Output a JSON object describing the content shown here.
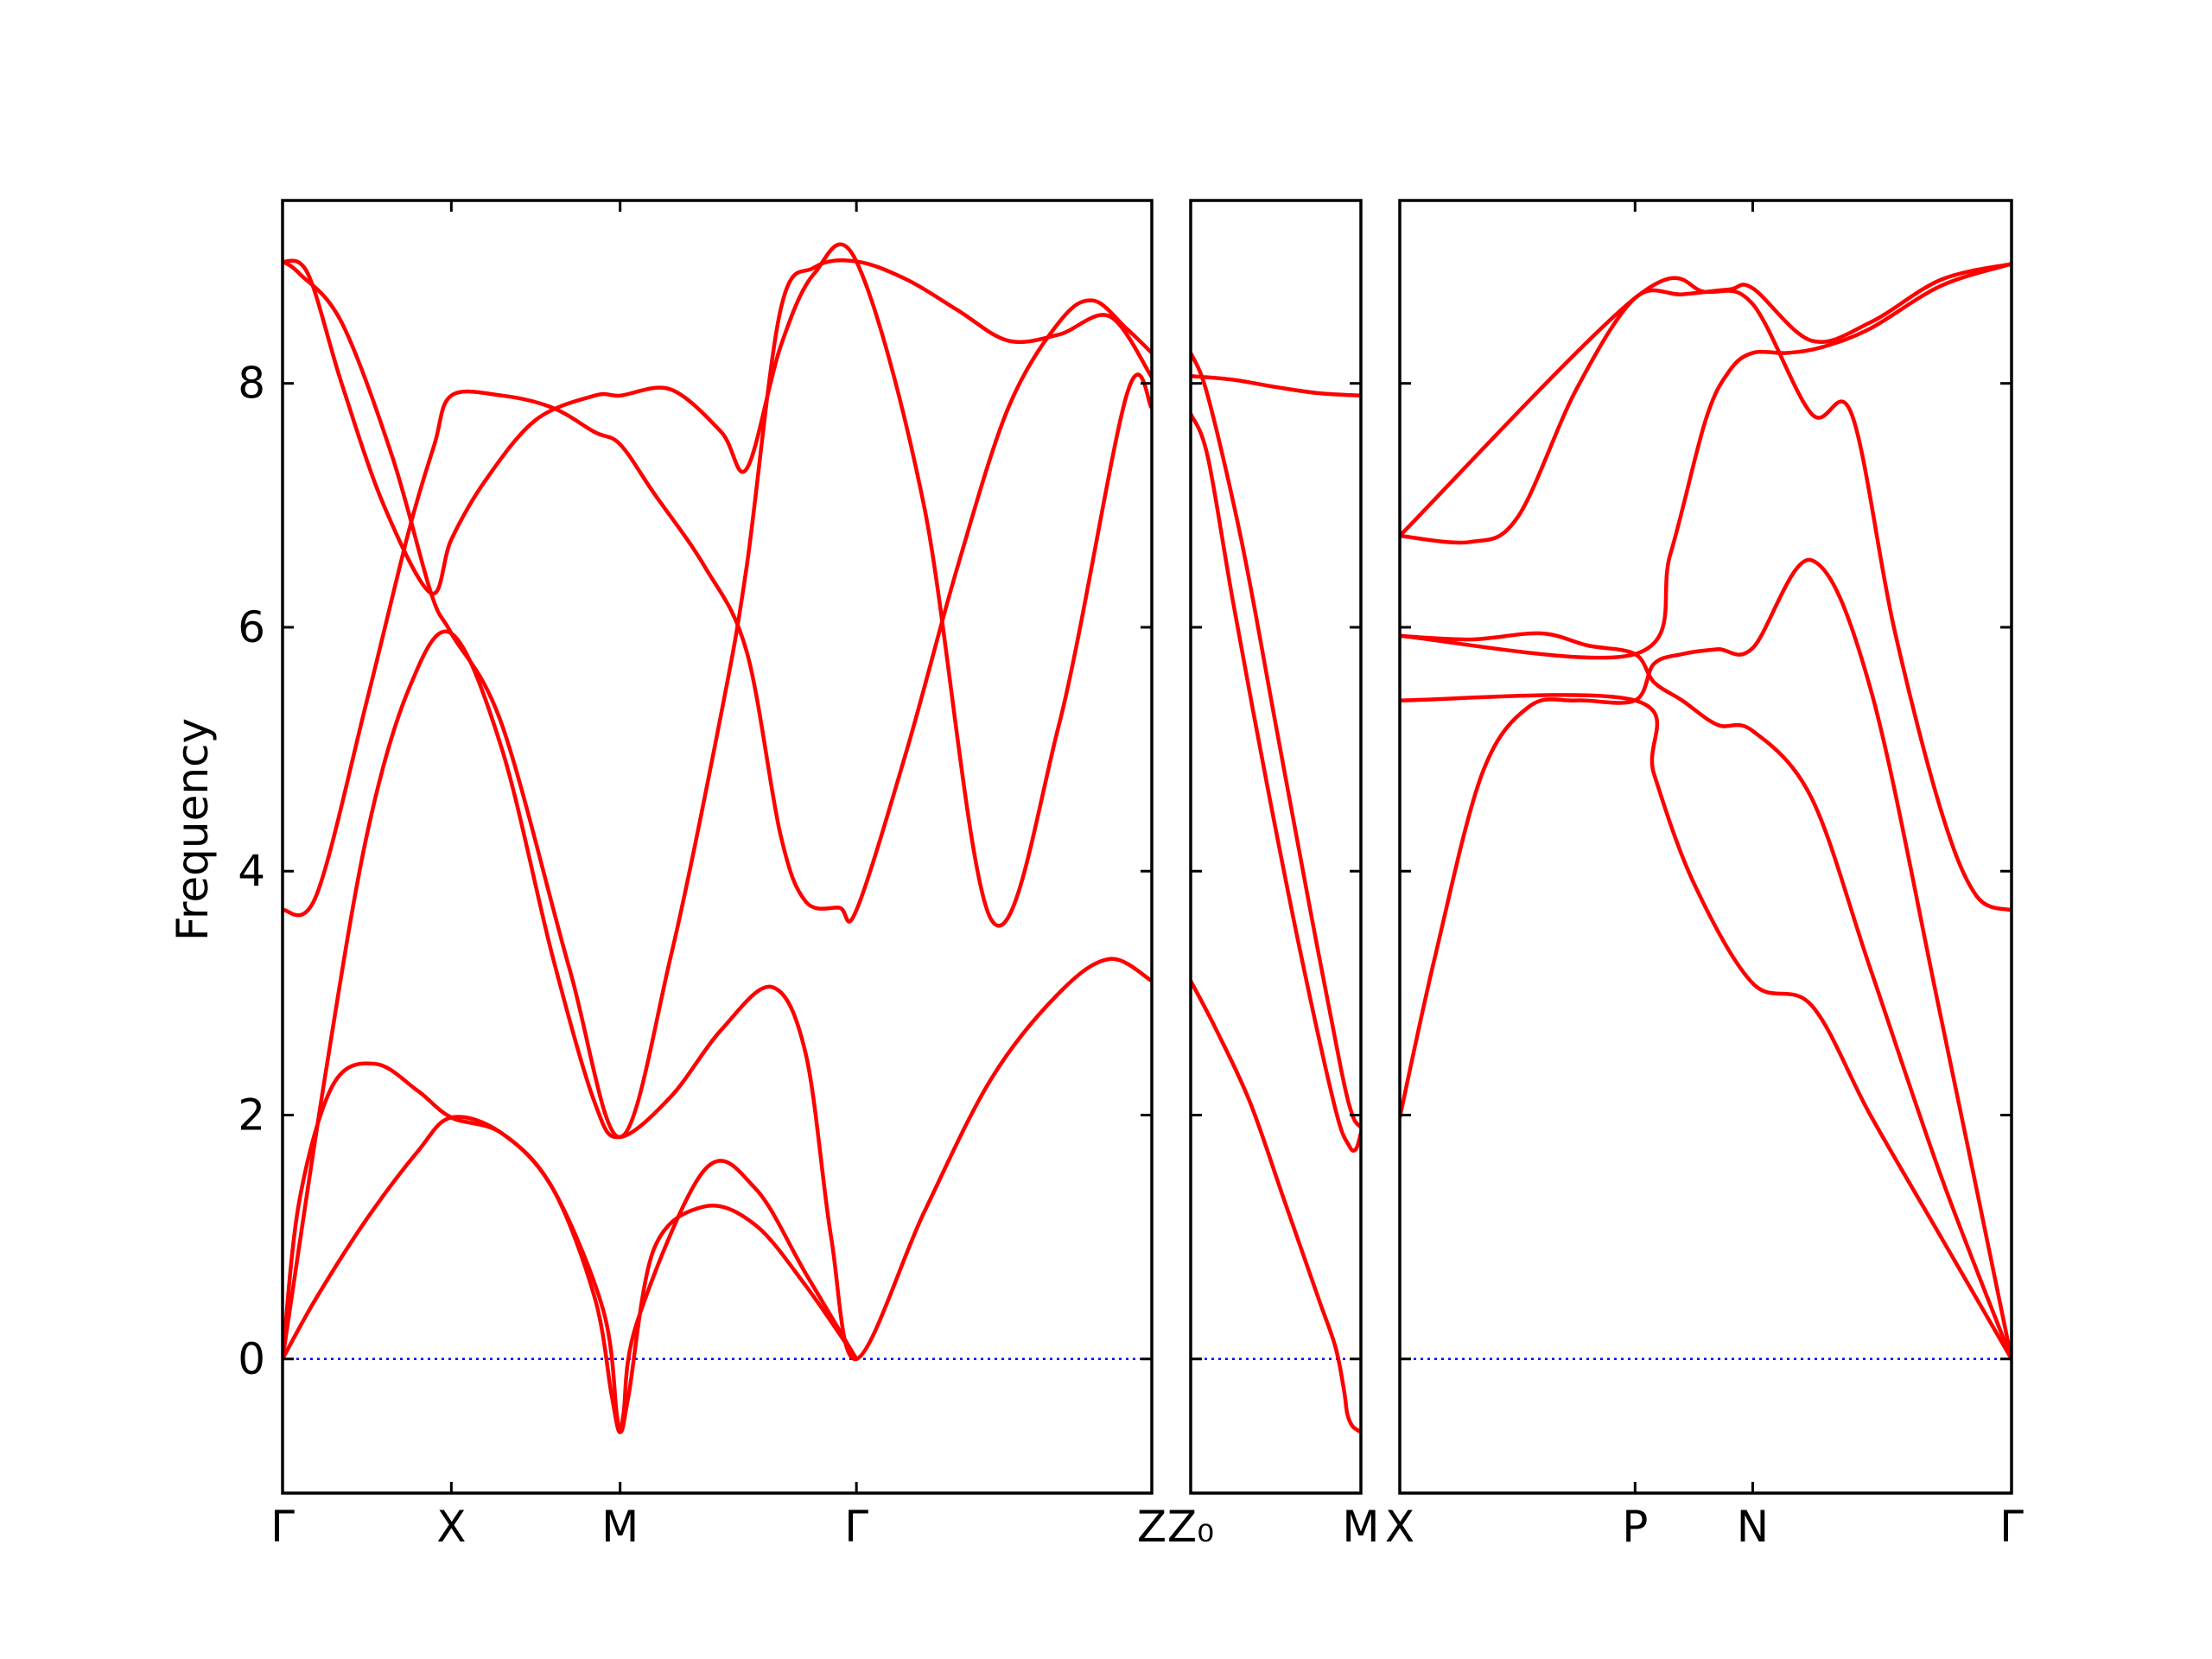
{
  "colors": {
    "band": "#ff0000",
    "zero_line": "#0000ff",
    "frame": "#000000"
  },
  "chart_data": {
    "type": "line",
    "ylabel": "Frequency",
    "ylim": [
      -1.1,
      9.5
    ],
    "yticks": [
      0,
      2,
      4,
      6,
      8
    ],
    "ytick_labels": [
      "0",
      "2",
      "4",
      "6",
      "8"
    ],
    "zero_line": {
      "y": 0,
      "style": "dotted"
    },
    "panels": [
      {
        "xlim": [
          0,
          5.15
        ],
        "ticks": [
          {
            "x": 0,
            "label": "Γ"
          },
          {
            "x": 1.0,
            "label": "X"
          },
          {
            "x": 2.0,
            "label": "M"
          },
          {
            "x": 3.4,
            "label": "Γ"
          },
          {
            "x": 5.15,
            "label": "Z"
          }
        ],
        "bands": [
          {
            "x": [
              0,
              0.2,
              0.5,
              0.8,
              1.0,
              1.3,
              1.6,
              1.85,
              1.95,
              2.0,
              2.05,
              2.2,
              2.5,
              2.8,
              3.1,
              3.4
            ],
            "y": [
              0,
              0.5,
              1.15,
              1.7,
              1.98,
              1.85,
              1.4,
              0.5,
              -0.3,
              -0.6,
              -0.3,
              0.9,
              1.25,
              1.1,
              0.6,
              0
            ]
          },
          {
            "x": [
              0,
              0.1,
              0.3,
              0.55,
              0.8,
              1.0,
              1.3,
              1.6,
              1.9,
              1.98,
              2.0,
              2.02,
              2.1,
              2.5,
              2.8,
              3.1,
              3.4
            ],
            "y": [
              0,
              1.3,
              2.25,
              2.42,
              2.2,
              1.98,
              1.85,
              1.4,
              0.4,
              -0.45,
              -0.6,
              -0.45,
              0.3,
              1.55,
              1.4,
              0.7,
              0
            ]
          },
          {
            "x": [
              0,
              0.25,
              0.5,
              0.75,
              1.0,
              1.3,
              1.6,
              1.85,
              2.0,
              2.3,
              2.6,
              2.9,
              3.1,
              3.25,
              3.4,
              3.8,
              4.2,
              4.6,
              4.9,
              5.15
            ],
            "y": [
              0,
              2.3,
              4.3,
              5.5,
              5.95,
              5.0,
              3.3,
              2.1,
              1.82,
              2.15,
              2.7,
              3.05,
              2.5,
              1.0,
              0,
              1.2,
              2.3,
              3.0,
              3.28,
              3.1
            ]
          },
          {
            "x": [
              0,
              0.2,
              0.5,
              0.75,
              0.9,
              1.0,
              1.3,
              1.6,
              1.85,
              2.0,
              2.2,
              2.5,
              2.75,
              2.95,
              3.1,
              3.3,
              3.4,
              3.7,
              4.0,
              4.3,
              4.6,
              4.8,
              5.0,
              5.15
            ],
            "y": [
              3.68,
              3.8,
              5.4,
              6.8,
              7.5,
              7.9,
              7.9,
              7.8,
              7.6,
              7.5,
              7.1,
              6.5,
              5.8,
              4.3,
              3.75,
              3.7,
              3.68,
              5.0,
              6.5,
              7.8,
              8.5,
              8.68,
              8.45,
              8.25
            ]
          },
          {
            "x": [
              0,
              0.15,
              0.35,
              0.6,
              0.88,
              1.0,
              1.2,
              1.5,
              1.85,
              2.0,
              2.3,
              2.6,
              2.75,
              2.95,
              3.15,
              3.4,
              3.8,
              4.2,
              4.6,
              5.0,
              5.15
            ],
            "y": [
              9.0,
              8.9,
              8.0,
              7.0,
              6.28,
              6.72,
              7.2,
              7.7,
              7.9,
              7.9,
              7.95,
              7.6,
              7.3,
              8.3,
              8.9,
              9.0,
              7.0,
              3.6,
              5.2,
              7.9,
              7.8
            ]
          },
          {
            "x": [
              0,
              0.1,
              0.35,
              0.65,
              0.88,
              1.0,
              1.3,
              1.7,
              2.0,
              2.3,
              2.6,
              2.75,
              2.95,
              3.15,
              3.4,
              3.7,
              4.0,
              4.3,
              4.6,
              4.9,
              5.15
            ],
            "y": [
              9.0,
              8.9,
              8.5,
              7.4,
              6.28,
              5.95,
              5.2,
              3.2,
              1.82,
              3.3,
              5.3,
              6.5,
              8.6,
              8.95,
              9.0,
              8.85,
              8.6,
              8.35,
              8.4,
              8.55,
              8.05
            ]
          }
        ]
      },
      {
        "xlim": [
          0,
          1.0
        ],
        "ticks": [
          {
            "x": 0,
            "label": "Z₀"
          },
          {
            "x": 1.0,
            "label": "M"
          }
        ],
        "bands": [
          {
            "x": [
              0,
              0.15,
              0.35,
              0.55,
              0.75,
              0.85,
              0.9,
              0.92,
              0.95,
              1.0
            ],
            "y": [
              3.1,
              2.7,
              2.1,
              1.3,
              0.5,
              0.1,
              -0.25,
              -0.45,
              -0.55,
              -0.6
            ]
          },
          {
            "x": [
              0,
              0.1,
              0.25,
              0.45,
              0.65,
              0.85,
              0.93,
              0.97,
              1.0
            ],
            "y": [
              7.75,
              7.4,
              6.2,
              4.7,
              3.3,
              2.05,
              1.75,
              1.72,
              1.85
            ]
          },
          {
            "x": [
              0,
              0.1,
              0.3,
              0.5,
              0.7,
              0.88,
              0.95,
              1.0
            ],
            "y": [
              8.25,
              7.9,
              6.7,
              5.2,
              3.7,
              2.4,
              2.0,
              1.9
            ]
          },
          {
            "x": [
              0,
              0.25,
              0.5,
              0.75,
              1.0
            ],
            "y": [
              8.06,
              8.03,
              7.97,
              7.92,
              7.9
            ]
          }
        ]
      },
      {
        "xlim": [
          0,
          2.6
        ],
        "ticks": [
          {
            "x": 0,
            "label": "X"
          },
          {
            "x": 1.0,
            "label": "P"
          },
          {
            "x": 1.5,
            "label": "N"
          },
          {
            "x": 2.6,
            "label": "Γ"
          }
        ],
        "bands": [
          {
            "x": [
              0,
              0.15,
              0.35,
              0.55,
              0.75,
              1.0,
              1.08,
              1.2,
              1.35,
              1.5,
              1.75,
              2.0,
              2.3,
              2.6
            ],
            "y": [
              1.98,
              3.3,
              4.8,
              5.35,
              5.4,
              5.4,
              5.7,
              5.78,
              5.82,
              5.83,
              6.55,
              5.5,
              2.8,
              0
            ]
          },
          {
            "x": [
              0,
              0.3,
              0.6,
              0.8,
              1.0,
              1.08,
              1.2,
              1.35,
              1.5,
              1.75,
              2.0,
              2.3,
              2.6
            ],
            "y": [
              5.93,
              5.9,
              5.95,
              5.85,
              5.78,
              5.55,
              5.4,
              5.2,
              5.15,
              4.6,
              3.2,
              1.5,
              0
            ]
          },
          {
            "x": [
              0,
              0.3,
              0.5,
              0.75,
              1.0,
              1.2,
              1.4,
              1.5,
              1.75,
              2.0,
              2.3,
              2.6
            ],
            "y": [
              6.75,
              6.7,
              6.9,
              7.95,
              8.7,
              8.73,
              8.77,
              8.78,
              8.35,
              8.5,
              8.85,
              8.98
            ]
          },
          {
            "x": [
              0,
              1.0,
              1.08,
              1.25,
              1.5,
              1.75,
              2.0,
              2.3,
              2.6
            ],
            "y": [
              5.4,
              5.4,
              4.8,
              3.9,
              3.08,
              2.9,
              2.0,
              1.0,
              0
            ]
          },
          {
            "x": [
              0,
              1.0,
              1.15,
              1.3,
              1.4,
              1.5,
              1.65,
              1.8,
              2.0,
              2.3,
              2.6
            ],
            "y": [
              5.93,
              5.78,
              6.6,
              7.7,
              8.1,
              8.25,
              8.25,
              8.3,
              8.45,
              8.8,
              8.98
            ]
          },
          {
            "x": [
              0,
              1.0,
              1.3,
              1.5,
              1.75,
              1.92,
              2.1,
              2.3,
              2.45,
              2.6
            ],
            "y": [
              6.75,
              8.7,
              8.75,
              8.65,
              7.75,
              7.75,
              6.0,
              4.5,
              3.8,
              3.68
            ]
          }
        ]
      }
    ]
  }
}
